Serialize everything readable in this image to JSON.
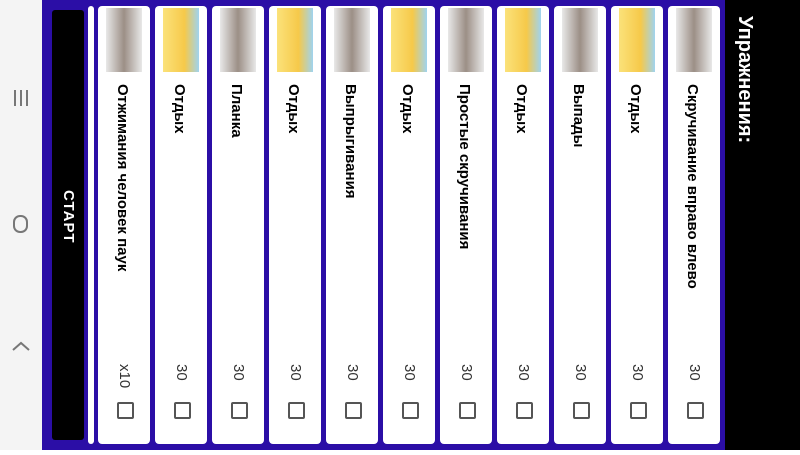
{
  "header": {
    "title": "Упражнения:"
  },
  "exercises": [
    {
      "name": "Скручивание вправо влево",
      "count": 30
    },
    {
      "name": "Отдых",
      "count": 30
    },
    {
      "name": "Выпады",
      "count": 30
    },
    {
      "name": "Отдых",
      "count": 30
    },
    {
      "name": "Простые скручивания",
      "count": 30
    },
    {
      "name": "Отдых",
      "count": 30
    },
    {
      "name": "Выпрыгивания",
      "count": 30
    },
    {
      "name": "Отдых",
      "count": 30
    },
    {
      "name": "Планка",
      "count": 30
    },
    {
      "name": "Отдых",
      "count": 30
    },
    {
      "name": "Отжимания человек паук",
      "count": "x10"
    }
  ],
  "start_button": {
    "label": "СТАРТ"
  }
}
